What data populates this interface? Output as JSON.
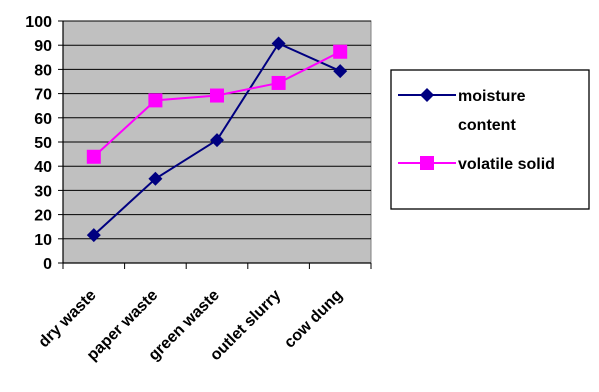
{
  "chart_data": {
    "type": "line",
    "categories": [
      "dry waste",
      "paper waste",
      "green waste",
      "outlet slurry",
      "cow dung"
    ],
    "series": [
      {
        "name": "moisture content",
        "values": [
          11.5,
          34.8,
          50.8,
          90.7,
          79.3
        ],
        "color": "#000080",
        "marker": "diamond"
      },
      {
        "name": "volatile solid",
        "values": [
          43.9,
          67.2,
          69.2,
          74.4,
          87.3
        ],
        "color": "#ff00ff",
        "marker": "square"
      }
    ],
    "ylim": [
      0,
      100
    ],
    "yticks": [
      0,
      10,
      20,
      30,
      40,
      50,
      60,
      70,
      80,
      90,
      100
    ],
    "grid": true,
    "plot_background": "#c0c0c0",
    "legend_position": "right",
    "legend": {
      "moisture_line1": "moisture",
      "moisture_line2": "content",
      "volatile": "volatile solid"
    }
  }
}
